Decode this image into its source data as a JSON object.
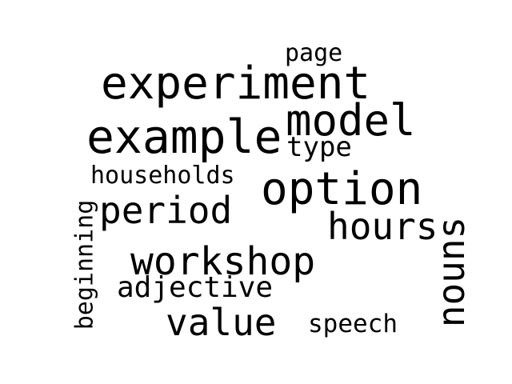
{
  "word_cloud": {
    "text_color": "#000000",
    "background": "#ffffff",
    "words": {
      "page": "page",
      "experiment": "experiment",
      "model": "model",
      "example": "example",
      "type": "type",
      "households": "households",
      "option": "option",
      "period": "period",
      "hours": "hours",
      "beginning": "beginning",
      "nouns": "nouns",
      "workshop": "workshop",
      "adjective": "adjective",
      "value": "value",
      "speech": "speech"
    }
  }
}
